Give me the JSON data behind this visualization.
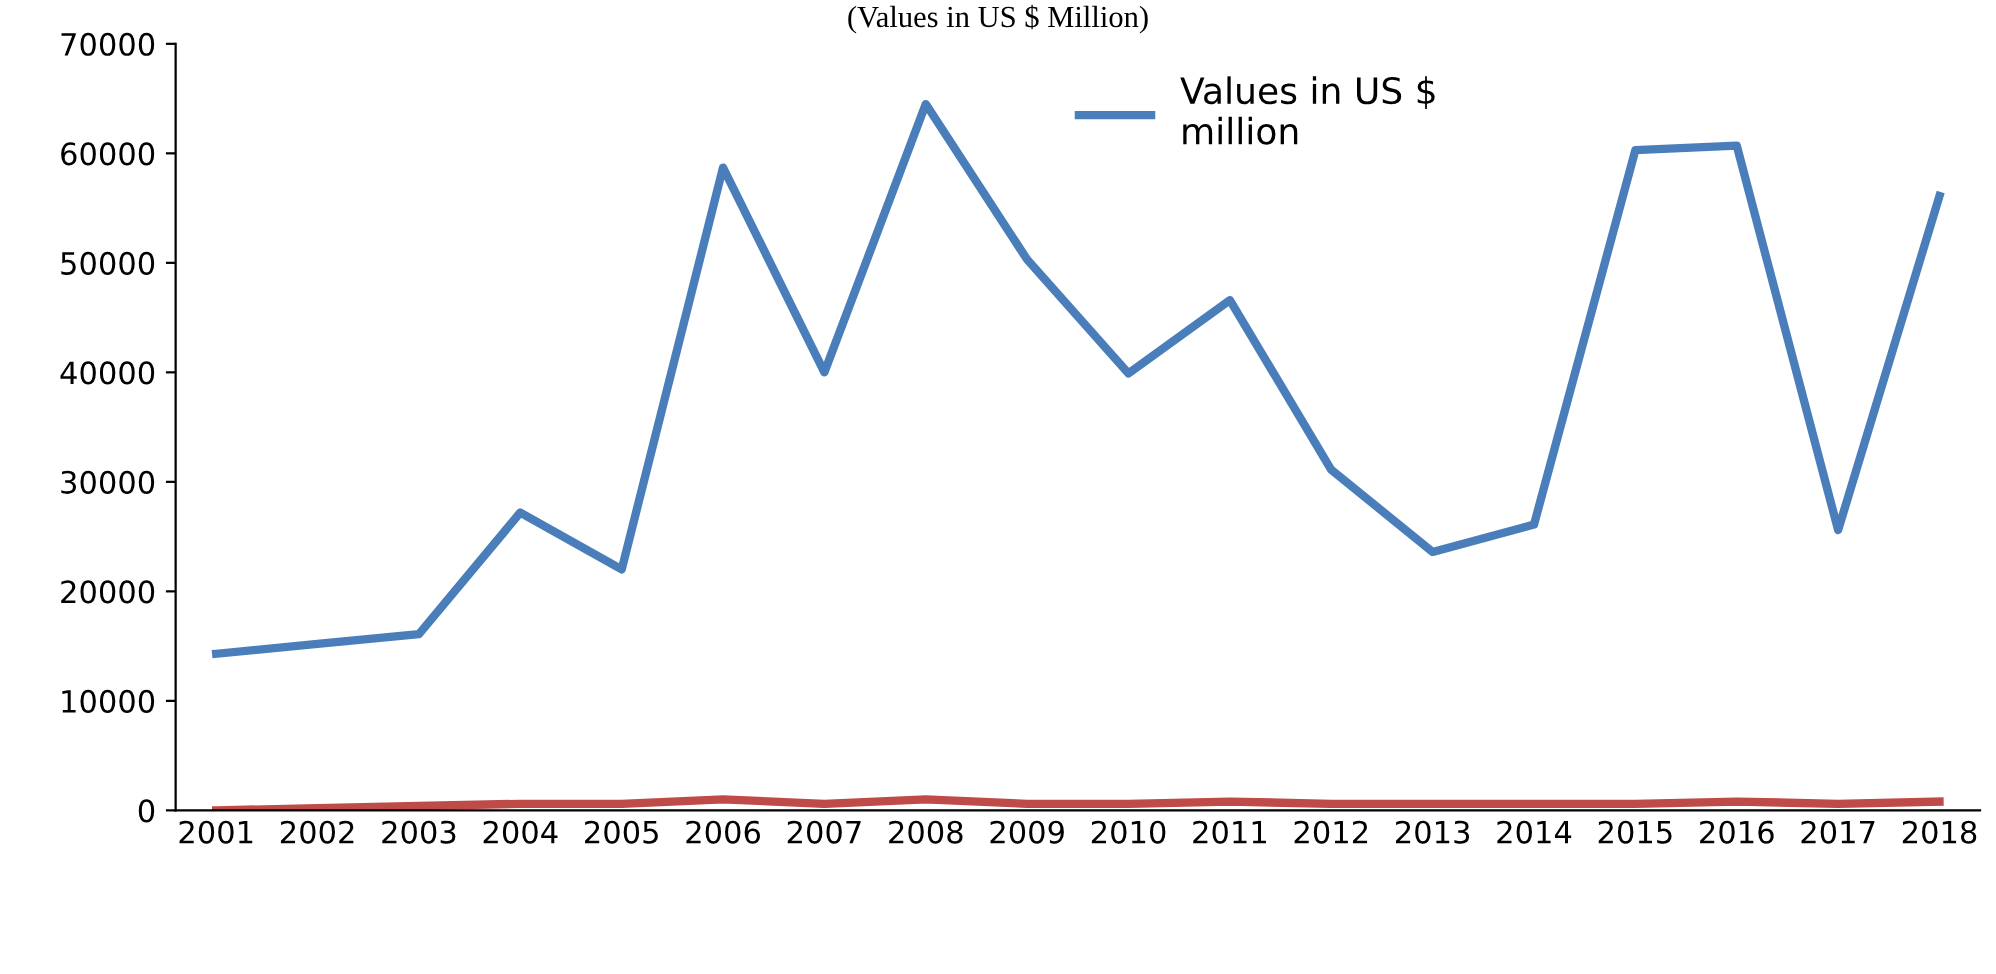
{
  "chart_data": {
    "type": "line",
    "title": "(Values in US $ Million)",
    "categories": [
      "2001",
      "2002",
      "2003",
      "2004",
      "2005",
      "2006",
      "2007",
      "2008",
      "2009",
      "2010",
      "2011",
      "2012",
      "2013",
      "2014",
      "2015",
      "2016",
      "2017",
      "2018"
    ],
    "series": [
      {
        "name": "Values in US $\nmillion",
        "color": "#4a7ebb",
        "values": [
          14300,
          15200,
          16100,
          27200,
          22000,
          58700,
          40000,
          64500,
          50300,
          39900,
          46600,
          31100,
          23600,
          26100,
          60300,
          60700,
          25600,
          56100
        ]
      },
      {
        "color": "#be4b48",
        "values": [
          0,
          200,
          400,
          600,
          600,
          1000,
          600,
          1000,
          600,
          600,
          800,
          600,
          600,
          600,
          600,
          800,
          600,
          800
        ]
      }
    ],
    "ylim": [
      0,
      70000
    ],
    "yticks": [
      0,
      10000,
      20000,
      30000,
      40000,
      50000,
      60000,
      70000
    ],
    "grid": false,
    "legend": "top",
    "marker": "none",
    "line_style": "solid"
  }
}
